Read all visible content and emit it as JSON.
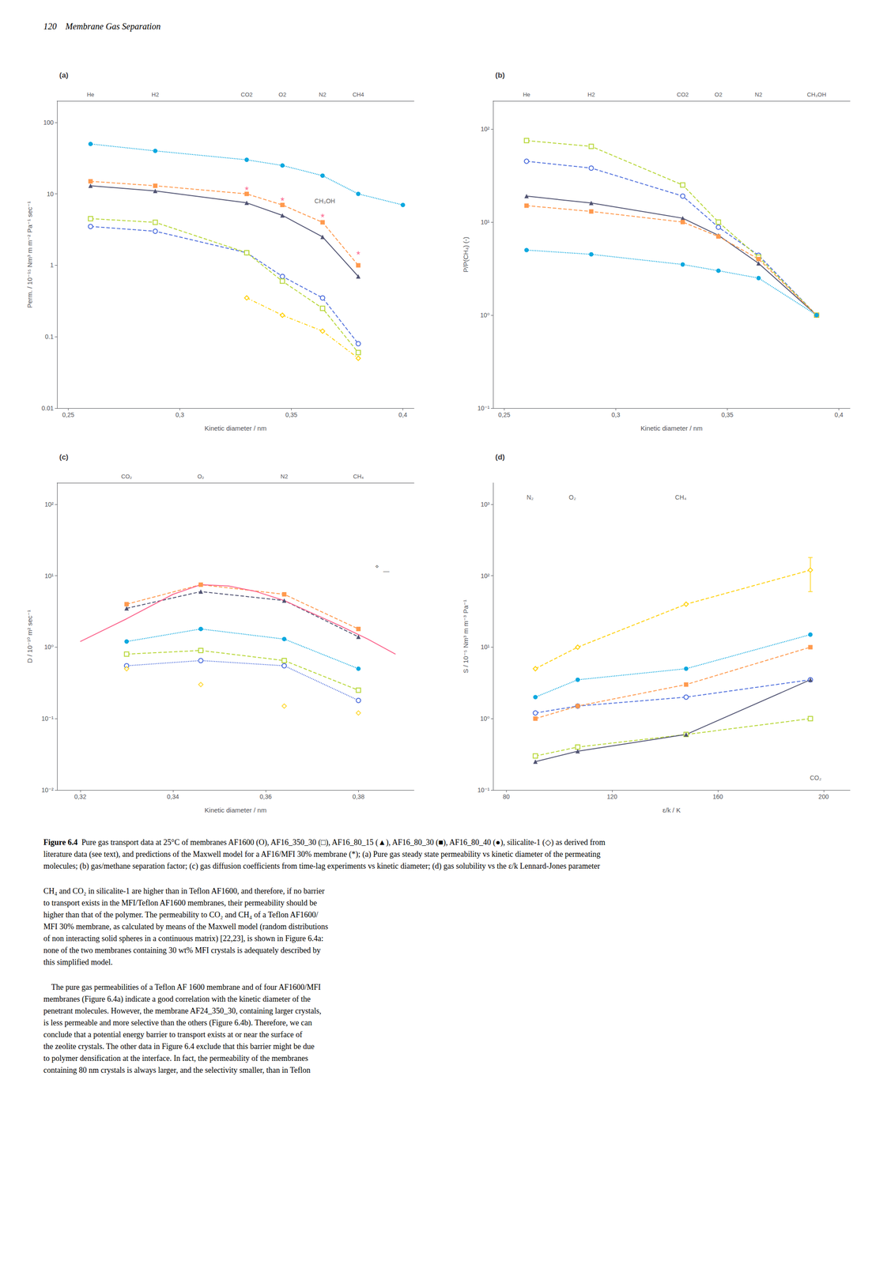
{
  "page_header": "120    Membrane Gas Separation",
  "chart_data": [
    {
      "type": "line",
      "title": "(a)",
      "xlabel": "Kinetic diameter / nm",
      "ylabel": "Perm. / 10⁻¹⁵ Nm³ m m⁻² Pa⁻¹ sec⁻¹",
      "log": "y",
      "grid": false,
      "xlim": [
        0.245,
        0.405
      ],
      "xticks": [
        {
          "value": 0.25,
          "label": "0,25"
        },
        {
          "value": 0.3,
          "label": "0,3"
        },
        {
          "value": 0.35,
          "label": "0,35"
        },
        {
          "value": 0.4,
          "label": "0,4"
        }
      ],
      "ylim": [
        0.01,
        200
      ],
      "yticks": [
        0.01,
        0.1,
        1,
        10,
        100
      ],
      "x2lim": [
        0.245,
        0.405
      ],
      "x2ticks": [
        {
          "value": 0.26,
          "label": "He"
        },
        {
          "value": 0.289,
          "label": "H2"
        },
        {
          "value": 0.33,
          "label": "CO2"
        },
        {
          "value": 0.346,
          "label": "O2"
        },
        {
          "value": 0.364,
          "label": "N2"
        },
        {
          "value": 0.38,
          "label": "CH4"
        }
      ],
      "annotations": [
        {
          "text": "CH₃OH",
          "x": 0.365,
          "y": 7.0
        }
      ],
      "series": [
        {
          "x": [
            0.26,
            0.289,
            0.33,
            0.346,
            0.364,
            0.38
          ],
          "values": [
            3.5,
            3.0,
            1.5,
            0.7,
            0.35,
            0.08
          ],
          "marker": "open-circle",
          "line_style": "dashed"
        },
        {
          "x": [
            0.26,
            0.289,
            0.33,
            0.346,
            0.364,
            0.38
          ],
          "values": [
            4.5,
            4.0,
            1.5,
            0.6,
            0.25,
            0.06
          ],
          "marker": "open-square",
          "line_style": "dashed"
        },
        {
          "x": [
            0.26,
            0.289,
            0.33,
            0.346,
            0.364,
            0.38
          ],
          "values": [
            13.0,
            11.0,
            7.5,
            5.0,
            2.5,
            0.7
          ],
          "marker": "filled-triangle",
          "line_style": "solid"
        },
        {
          "x": [
            0.26,
            0.289,
            0.33,
            0.346,
            0.364,
            0.38
          ],
          "values": [
            15.0,
            13.0,
            10.0,
            7.0,
            4.0,
            1.0
          ],
          "marker": "filled-square",
          "line_style": "dashed"
        },
        {
          "x": [
            0.26,
            0.289,
            0.33,
            0.346,
            0.364,
            0.38,
            0.4
          ],
          "values": [
            50.0,
            40.0,
            30.0,
            25.0,
            18.0,
            10.0,
            7.0
          ],
          "marker": "filled-circle",
          "line_style": "dotted"
        },
        {
          "x": [
            0.33,
            0.346,
            0.364,
            0.38
          ],
          "values": [
            0.35,
            0.2,
            0.12,
            0.05
          ],
          "marker": "open-diamond",
          "line_style": "dashdot"
        },
        {
          "type": "scatter",
          "x": [
            0.33,
            0.346,
            0.364,
            0.38
          ],
          "values": [
            12.0,
            8.5,
            5.0,
            1.5
          ],
          "marker": "filled-star"
        }
      ]
    },
    {
      "type": "line",
      "title": "(b)",
      "xlabel": "Kinetic diameter / nm",
      "ylabel": "P/P(CH₄) (-)",
      "log": "y",
      "grid": false,
      "xlim": [
        0.245,
        0.405
      ],
      "xticks": [
        {
          "value": 0.25,
          "label": "0,25"
        },
        {
          "value": 0.3,
          "label": "0,3"
        },
        {
          "value": 0.35,
          "label": "0,35"
        },
        {
          "value": 0.4,
          "label": "0,4"
        }
      ],
      "ylim": [
        0.1,
        200
      ],
      "yticks": [
        {
          "value": 0.1,
          "label": "10⁻¹"
        },
        {
          "value": 1,
          "label": "10⁰"
        },
        {
          "value": 10,
          "label": "10¹"
        },
        {
          "value": 100,
          "label": "10²"
        }
      ],
      "x2lim": [
        0.245,
        0.405
      ],
      "x2ticks": [
        {
          "value": 0.26,
          "label": "He"
        },
        {
          "value": 0.289,
          "label": "H2"
        },
        {
          "value": 0.33,
          "label": "CO2"
        },
        {
          "value": 0.346,
          "label": "O2"
        },
        {
          "value": 0.364,
          "label": "N2"
        },
        {
          "value": 0.39,
          "label": "CH₃OH"
        }
      ],
      "series": [
        {
          "x": [
            0.26,
            0.289,
            0.33,
            0.346,
            0.364,
            0.39
          ],
          "values": [
            45.0,
            38.0,
            19.0,
            8.8,
            4.4,
            1.0
          ],
          "marker": "open-circle",
          "line_style": "dashed"
        },
        {
          "x": [
            0.26,
            0.289,
            0.33,
            0.346,
            0.364,
            0.39
          ],
          "values": [
            75.0,
            65.0,
            25.0,
            10.0,
            4.2,
            1.0
          ],
          "marker": "open-square",
          "line_style": "dashed"
        },
        {
          "x": [
            0.26,
            0.289,
            0.33,
            0.346,
            0.364,
            0.39
          ],
          "values": [
            19.0,
            16.0,
            11.0,
            7.2,
            3.6,
            1.0
          ],
          "marker": "filled-triangle",
          "line_style": "solid"
        },
        {
          "x": [
            0.26,
            0.289,
            0.33,
            0.346,
            0.364,
            0.39
          ],
          "values": [
            15.0,
            13.0,
            10.0,
            7.0,
            4.0,
            1.0
          ],
          "marker": "filled-square",
          "line_style": "dashed"
        },
        {
          "x": [
            0.26,
            0.289,
            0.33,
            0.346,
            0.364,
            0.39
          ],
          "values": [
            5.0,
            4.5,
            3.5,
            3.0,
            2.5,
            1.0
          ],
          "marker": "filled-circle",
          "line_style": "dotted"
        }
      ]
    },
    {
      "type": "line",
      "title": "(c)",
      "xlabel": "Kinetic diameter / nm",
      "ylabel": "D / 10⁻¹⁰ m² sec⁻¹",
      "log": "y",
      "grid": false,
      "xlim": [
        0.315,
        0.392
      ],
      "xticks": [
        {
          "value": 0.32,
          "label": "0,32"
        },
        {
          "value": 0.34,
          "label": "0,34"
        },
        {
          "value": 0.36,
          "label": "0,36"
        },
        {
          "value": 0.38,
          "label": "0,38"
        }
      ],
      "ylim": [
        0.01,
        200
      ],
      "yticks": [
        {
          "value": 0.01,
          "label": "10⁻²"
        },
        {
          "value": 0.1,
          "label": "10⁻¹"
        },
        {
          "value": 1,
          "label": "10⁰"
        },
        {
          "value": 10,
          "label": "10¹"
        },
        {
          "value": 100,
          "label": "10²"
        }
      ],
      "x2lim": [
        0.315,
        0.392
      ],
      "x2ticks": [
        {
          "value": 0.33,
          "label": "CO₂"
        },
        {
          "value": 0.346,
          "label": "O₂"
        },
        {
          "value": 0.364,
          "label": "N2"
        },
        {
          "value": 0.38,
          "label": "CH₄"
        }
      ],
      "annotations": [
        {
          "text": "⋄",
          "x": 0.384,
          "y": 12.0
        },
        {
          "text": "—",
          "x": 0.386,
          "y": 10.2
        }
      ],
      "series": [
        {
          "x": [
            0.33,
            0.346,
            0.364,
            0.38
          ],
          "values": [
            0.55,
            0.65,
            0.55,
            0.18
          ],
          "marker": "open-circle",
          "line_style": "dotted"
        },
        {
          "x": [
            0.33,
            0.346,
            0.364,
            0.38
          ],
          "values": [
            0.8,
            0.9,
            0.65,
            0.25
          ],
          "marker": "open-square",
          "line_style": "dashed"
        },
        {
          "x": [
            0.33,
            0.346,
            0.364,
            0.38
          ],
          "values": [
            3.5,
            6.0,
            4.5,
            1.4
          ],
          "marker": "filled-triangle",
          "line_style": "dashed"
        },
        {
          "x": [
            0.33,
            0.346,
            0.364,
            0.38
          ],
          "values": [
            4.0,
            7.5,
            5.5,
            1.8
          ],
          "marker": "filled-square",
          "line_style": "dashed"
        },
        {
          "x": [
            0.33,
            0.346,
            0.364,
            0.38
          ],
          "values": [
            1.2,
            1.8,
            1.3,
            0.5
          ],
          "marker": "filled-circle",
          "line_style": "dotted"
        },
        {
          "type": "scatter",
          "x": [
            0.33,
            0.346,
            0.364,
            0.38
          ],
          "values": [
            0.5,
            0.3,
            0.15,
            0.12
          ],
          "marker": "open-diamond"
        },
        {
          "x": [
            0.32,
            0.33,
            0.34,
            0.346,
            0.352,
            0.358,
            0.364,
            0.37,
            0.376,
            0.382,
            0.388
          ],
          "values": [
            1.2,
            2.5,
            5.5,
            7.5,
            7.2,
            6.0,
            4.5,
            3.0,
            2.0,
            1.3,
            0.8
          ],
          "marker": "none",
          "line_style": "solid"
        }
      ]
    },
    {
      "type": "line",
      "title": "(d)",
      "xlabel": "ε/k / K",
      "ylabel": "S / 10⁻⁵ Nm³ m m⁻³ Pa⁻¹",
      "log": "y",
      "grid": false,
      "xlim": [
        75,
        210
      ],
      "xticks": [
        80,
        120,
        160,
        200
      ],
      "ylim": [
        0.1,
        2000
      ],
      "yticks": [
        {
          "value": 0.1,
          "label": "10⁻¹"
        },
        {
          "value": 1,
          "label": "10⁰"
        },
        {
          "value": 10,
          "label": "10¹"
        },
        {
          "value": 100,
          "label": "10²"
        },
        {
          "value": 1000,
          "label": "10³"
        }
      ],
      "annotations": [
        {
          "text": "N₂",
          "x": 89,
          "y": 1100
        },
        {
          "text": "O₂",
          "x": 105,
          "y": 1100
        },
        {
          "text": "CH₄",
          "x": 146,
          "y": 1100
        },
        {
          "text": "CO₂",
          "x": 197,
          "y": 0.13
        }
      ],
      "series": [
        {
          "x": [
            91,
            107,
            148,
            195
          ],
          "values": [
            1.2,
            1.5,
            2.0,
            3.5
          ],
          "marker": "open-circle",
          "line_style": "dashed"
        },
        {
          "x": [
            91,
            107,
            148,
            195
          ],
          "values": [
            0.3,
            0.4,
            0.6,
            1.0
          ],
          "marker": "open-square",
          "line_style": "dashed"
        },
        {
          "x": [
            91,
            107,
            148,
            195
          ],
          "values": [
            0.25,
            0.35,
            0.6,
            3.5
          ],
          "marker": "filled-triangle",
          "line_style": "solid"
        },
        {
          "x": [
            91,
            107,
            148,
            195
          ],
          "values": [
            1.0,
            1.5,
            3.0,
            10.0
          ],
          "marker": "filled-square",
          "line_style": "dashed"
        },
        {
          "x": [
            91,
            107,
            148,
            195
          ],
          "values": [
            2.0,
            3.5,
            5.0,
            15.0
          ],
          "marker": "filled-circle",
          "line_style": "dotted"
        },
        {
          "x": [
            91,
            107,
            148,
            195
          ],
          "values": [
            5.0,
            10.0,
            40.0,
            120.0
          ],
          "errors": [
            0,
            0,
            0,
            60
          ],
          "marker": "open-diamond",
          "line_style": "dashed"
        }
      ]
    }
  ],
  "caption": {
    "label": "Figure 6.4",
    "lines": [
      "Pure gas transport data at 25°C of membranes AF1600 (O), AF16_350_30 (□), AF16_80_15 (▲), AF16_80_30 (■), AF16_80_40 (●), silicalite-1 (◇) as derived from",
      "literature data (see text), and predictions of the Maxwell model for a AF16/MFI 30% membrane (*); (a) Pure gas steady state permeability vs kinetic diameter of the permeating",
      "molecules; (b) gas/methane separation factor; (c) gas diffusion coefficients from time-lag experiments vs kinetic diameter; (d) gas solubility vs the ε/k Lennard-Jones parameter"
    ]
  },
  "body_text": [
    [
      "CH₄ and CO₂ in silicalite-1 are higher than in Teflon AF1600, and therefore, if no barrier",
      "to transport exists in the MFI/Teflon AF1600 membranes, their permeability should be",
      "higher than that of the polymer. The permeability to CO₂ and CH₄ of a Teflon AF1600/",
      "MFI 30% membrane, as calculated by means of the Maxwell model (random distributions",
      "of non interacting solid spheres in a continuous matrix) [22,23], is shown in Figure 6.4a:",
      "none of the two membranes containing 30 wt% MFI crystals is adequately described by",
      "this simplified model."
    ],
    [
      "    The pure gas permeabilities of a Teflon AF 1600 membrane and of four AF1600/MFI",
      "membranes (Figure 6.4a) indicate a good correlation with the kinetic diameter of the",
      "penetrant molecules. However, the membrane AF24_350_30, containing larger crystals,",
      "is less permeable and more selective than the others (Figure 6.4b). Therefore, we can",
      "conclude that a potential energy barrier to transport exists at or near the surface of",
      "the zeolite crystals. The other data in Figure 6.4 exclude that this barrier might be due",
      "to polymer densification at the interface. In fact, the permeability of the membranes",
      "containing 80 nm crystals is always larger, and the selectivity smaller, than in Teflon"
    ]
  ]
}
